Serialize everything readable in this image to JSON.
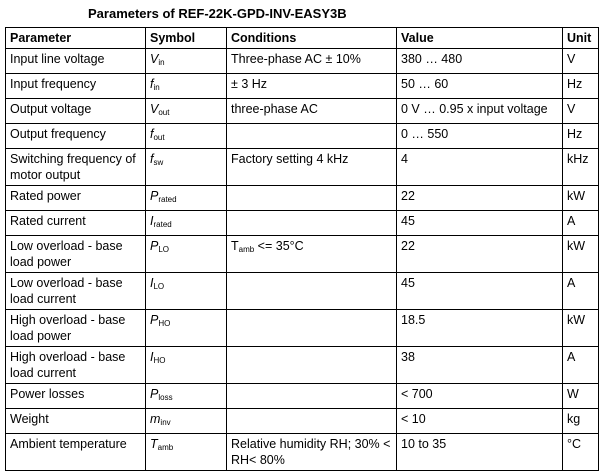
{
  "title": "Parameters of REF-22K-GPD-INV-EASY3B",
  "table": {
    "header": [
      "Parameter",
      "Symbol",
      "Conditions",
      "Value",
      "Unit"
    ],
    "rows": [
      {
        "parameter": "Input line voltage",
        "symbol": {
          "main": "V",
          "sub": "in"
        },
        "conditions": "Three-phase AC ± 10%",
        "value": "380 … 480",
        "unit": "V"
      },
      {
        "parameter": "Input frequency",
        "symbol": {
          "main": "f",
          "sub": "in"
        },
        "conditions": "± 3 Hz",
        "value": "50 … 60",
        "unit": "Hz"
      },
      {
        "parameter": "Output voltage",
        "symbol": {
          "main": "V",
          "sub": "out"
        },
        "conditions": "three-phase AC",
        "value": "0 V … 0.95 x input voltage",
        "unit": "V"
      },
      {
        "parameter": "Output frequency",
        "symbol": {
          "main": "f",
          "sub": "out"
        },
        "conditions": null,
        "value": "0 … 550",
        "unit": "Hz"
      },
      {
        "parameter": "Switching frequency of motor output",
        "symbol": {
          "main": "f",
          "sub": "sw"
        },
        "conditions": "Factory setting 4 kHz",
        "value": "4",
        "unit": "kHz"
      },
      {
        "parameter": "Rated power",
        "symbol": {
          "main": "P",
          "sub": "rated"
        },
        "conditions": null,
        "value": "22",
        "unit": "kW"
      },
      {
        "parameter": "Rated current",
        "symbol": {
          "main": "I",
          "sub": "rated"
        },
        "conditions": null,
        "value": "45",
        "unit": "A"
      },
      {
        "parameter": "Low overload - base load power",
        "symbol": {
          "main": "P",
          "sub": "LO"
        },
        "conditions": {
          "main": "T",
          "sub": "amb",
          "rest": " <= 35°C"
        },
        "value": "22",
        "unit": "kW"
      },
      {
        "parameter": "Low overload - base load current",
        "symbol": {
          "main": "I",
          "sub": "LO"
        },
        "conditions": null,
        "value": "45",
        "unit": "A"
      },
      {
        "parameter": "High overload - base load power",
        "symbol": {
          "main": "P",
          "sub": "HO"
        },
        "conditions": null,
        "value": "18.5",
        "unit": "kW"
      },
      {
        "parameter": "High overload - base load current",
        "symbol": {
          "main": "I",
          "sub": "HO"
        },
        "conditions": null,
        "value": "38",
        "unit": "A"
      },
      {
        "parameter": "Power losses",
        "symbol": {
          "main": "P",
          "sub": "loss"
        },
        "conditions": null,
        "value": "< 700",
        "unit": "W"
      },
      {
        "parameter": "Weight",
        "symbol": {
          "main": "m",
          "sub": "inv"
        },
        "conditions": null,
        "value": "< 10",
        "unit": "kg"
      },
      {
        "parameter": "Ambient temperature",
        "symbol": {
          "main": "T",
          "sub": "amb"
        },
        "conditions": "Relative humidity RH; 30% < RH< 80%",
        "value": "10 to 35",
        "unit": "°C"
      }
    ]
  }
}
